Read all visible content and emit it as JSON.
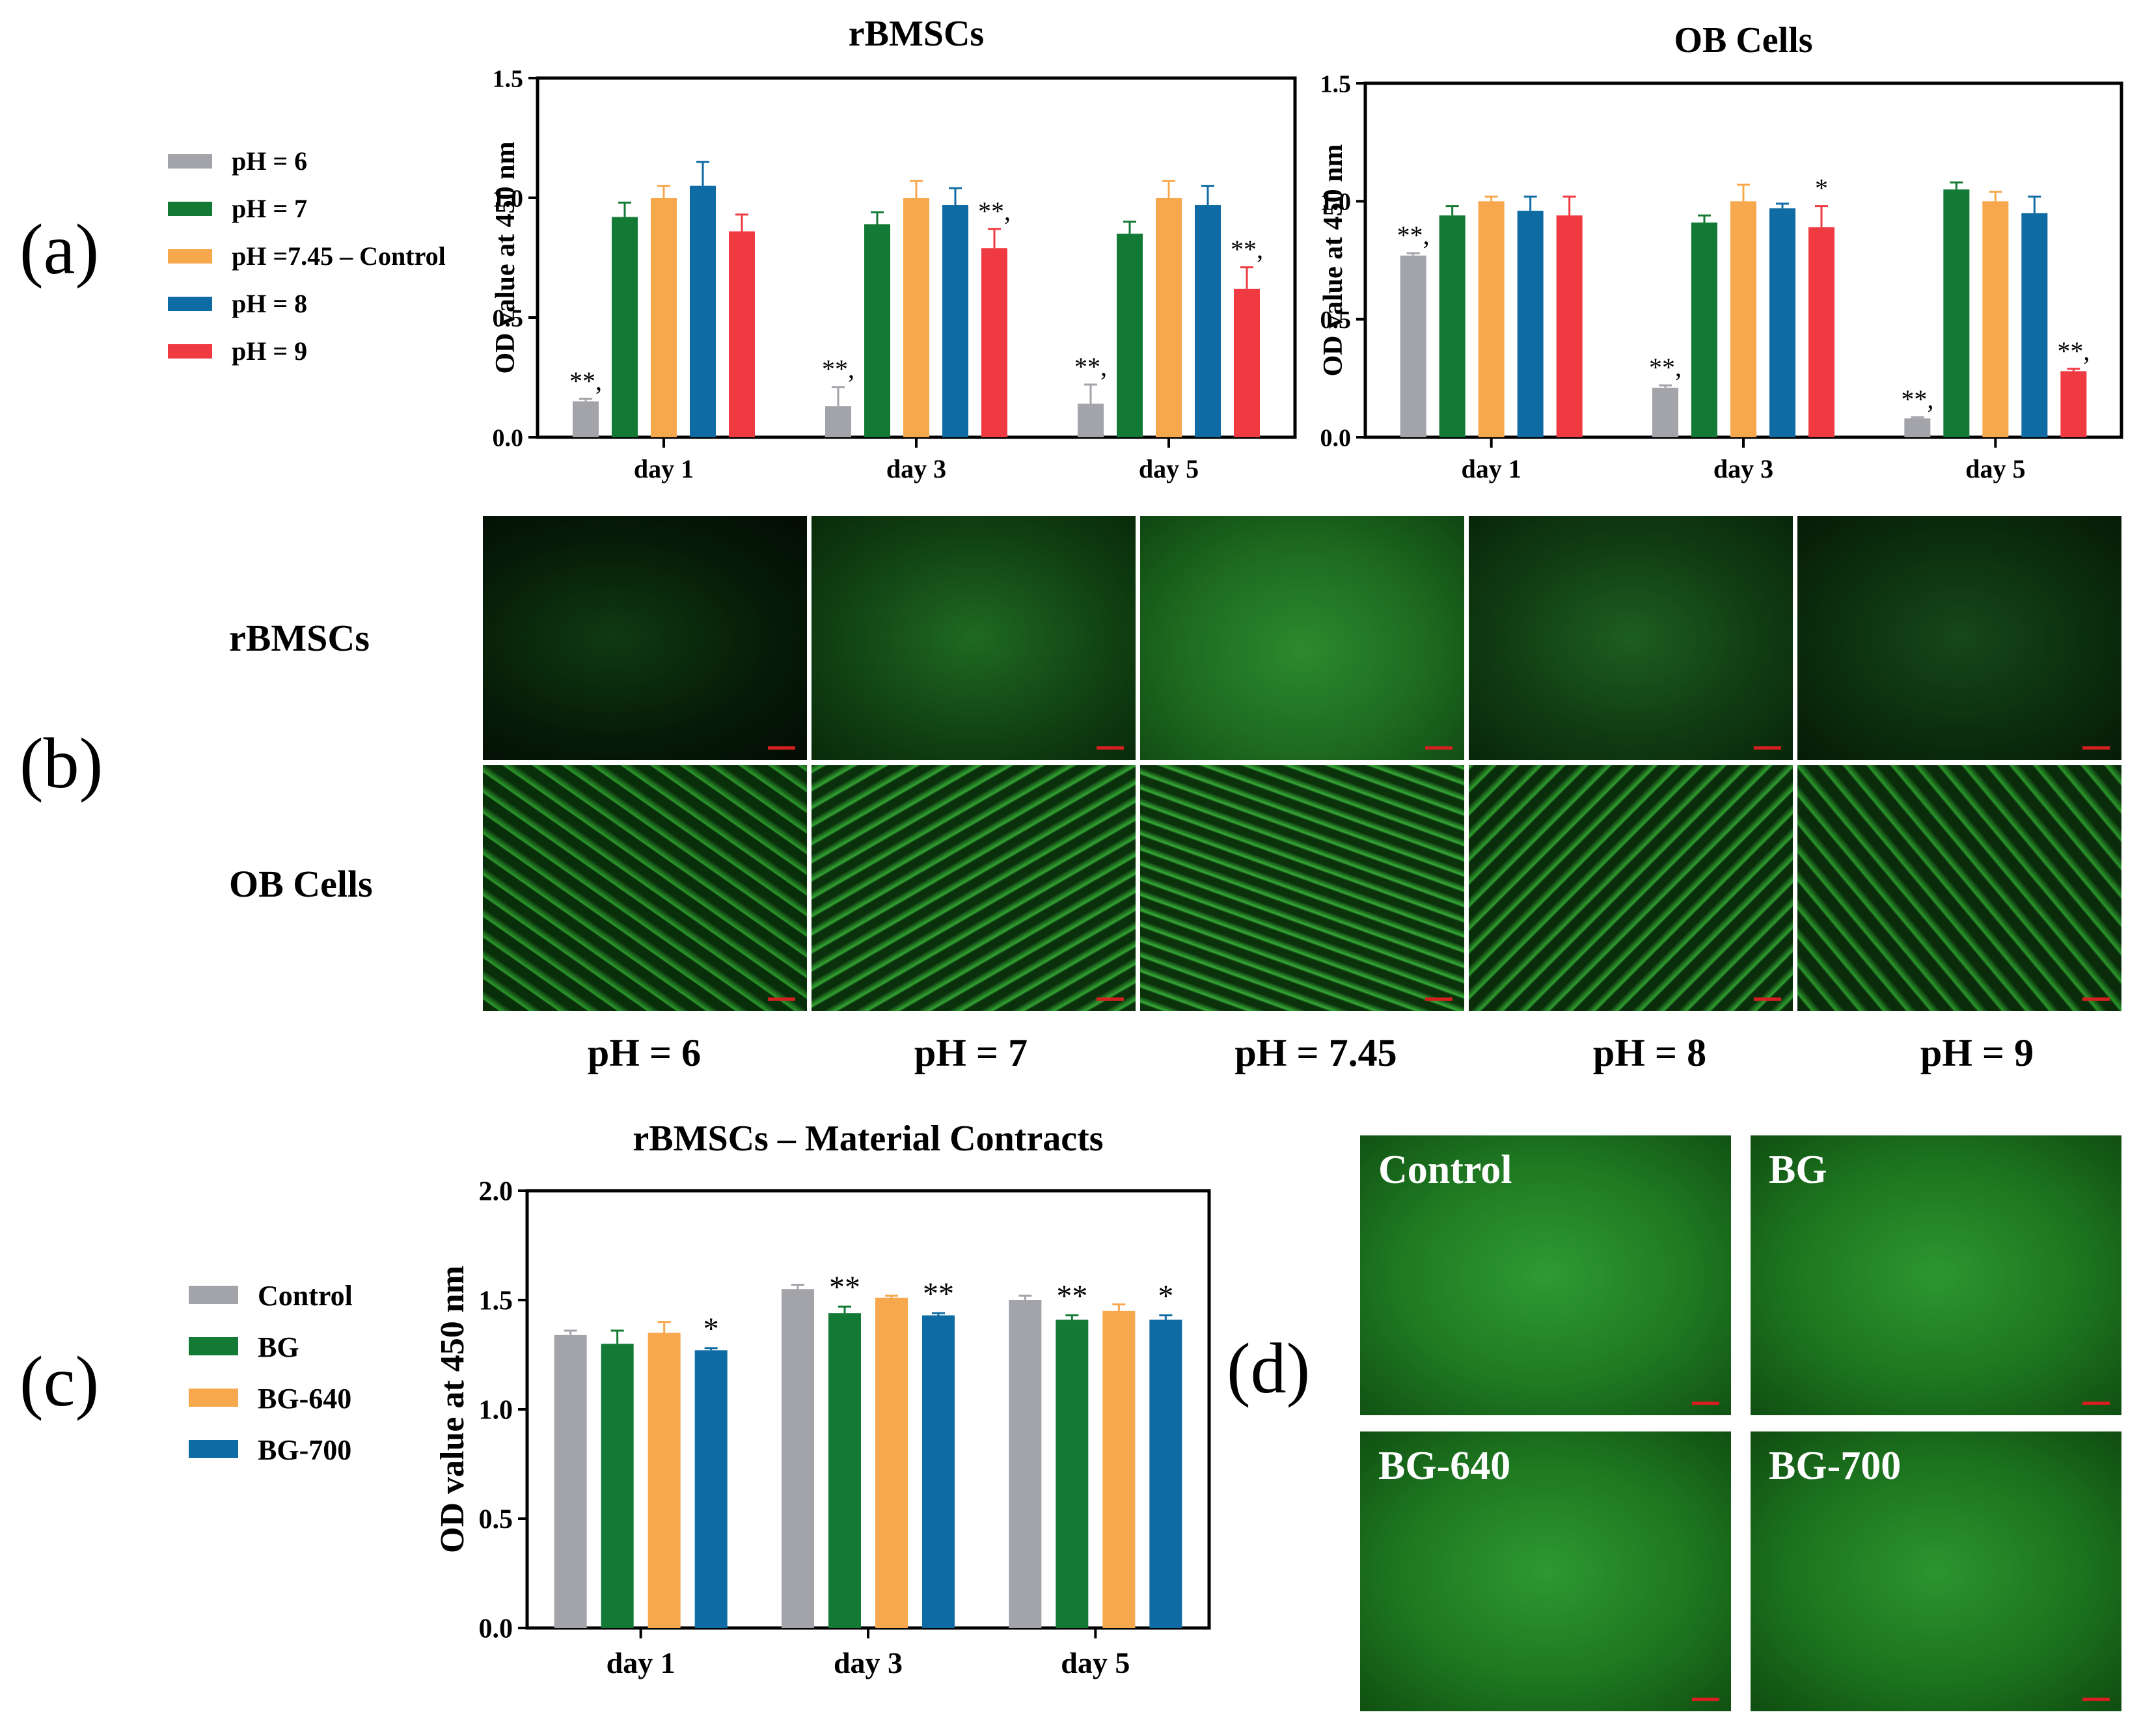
{
  "panel_labels": [
    "(a)",
    "(b)",
    "(c)",
    "(d)"
  ],
  "colors": {
    "pH = 6": "#a3a3aa",
    "pH = 7": "#137a35",
    "pH =7.45 – Control": "#f8a84c",
    "pH = 8": "#0e6ba4",
    "pH = 9": "#ef3a42",
    "Control": "#a3a3aa",
    "BG": "#137a35",
    "BG-640": "#f8a84c",
    "BG-700": "#0e6ba4"
  },
  "panel_a_legend": [
    "pH = 6",
    "pH = 7",
    "pH =7.45 – Control",
    "pH = 8",
    "pH = 9"
  ],
  "panel_c_legend": [
    "Control",
    "BG",
    "BG-640",
    "BG-700"
  ],
  "panel_b": {
    "row_labels": [
      "rBMSCs",
      "OB Cells"
    ],
    "column_labels": [
      "pH = 6",
      "pH = 7",
      "pH = 7.45",
      "pH = 8",
      "pH = 9"
    ]
  },
  "panel_d": {
    "labels": [
      "Control",
      "BG",
      "BG-640",
      "BG-700"
    ]
  },
  "chart_data": [
    {
      "type": "bar",
      "title": "rBMSCs",
      "ylabel": "OD value at 450 nm",
      "xlabel": "",
      "ylim": [
        0,
        1.5
      ],
      "yticks": [
        "0.0",
        "0.5",
        "1.0",
        "1.5"
      ],
      "categories": [
        "day 1",
        "day 3",
        "day 5"
      ],
      "grid": false,
      "series": [
        {
          "name": "pH = 6",
          "values": [
            0.15,
            0.13,
            0.14
          ],
          "errors": [
            0.01,
            0.08,
            0.08
          ],
          "annotations": [
            "**,",
            "**,",
            "**,"
          ]
        },
        {
          "name": "pH = 7",
          "values": [
            0.92,
            0.89,
            0.85
          ],
          "errors": [
            0.06,
            0.05,
            0.05
          ],
          "annotations": [
            "",
            "",
            ""
          ]
        },
        {
          "name": "pH =7.45 – Control",
          "values": [
            1.0,
            1.0,
            1.0
          ],
          "errors": [
            0.05,
            0.07,
            0.07
          ],
          "annotations": [
            "",
            "",
            ""
          ]
        },
        {
          "name": "pH = 8",
          "values": [
            1.05,
            0.97,
            0.97
          ],
          "errors": [
            0.1,
            0.07,
            0.08
          ],
          "annotations": [
            "",
            "",
            ""
          ]
        },
        {
          "name": "pH = 9",
          "values": [
            0.86,
            0.79,
            0.62
          ],
          "errors": [
            0.07,
            0.08,
            0.09
          ],
          "annotations": [
            "",
            "**,",
            "**,"
          ]
        }
      ]
    },
    {
      "type": "bar",
      "title": "OB Cells",
      "ylabel": "OD value at 450 nm",
      "xlabel": "",
      "ylim": [
        0,
        1.5
      ],
      "yticks": [
        "0.0",
        "0.5",
        "1.0",
        "1.5"
      ],
      "categories": [
        "day 1",
        "day 3",
        "day 5"
      ],
      "grid": false,
      "series": [
        {
          "name": "pH = 6",
          "values": [
            0.77,
            0.21,
            0.08
          ],
          "errors": [
            0.01,
            0.01,
            0.005
          ],
          "annotations": [
            "**,",
            "**,",
            "**,"
          ]
        },
        {
          "name": "pH = 7",
          "values": [
            0.94,
            0.91,
            1.05
          ],
          "errors": [
            0.04,
            0.03,
            0.03
          ],
          "annotations": [
            "",
            "",
            ""
          ]
        },
        {
          "name": "pH =7.45 – Control",
          "values": [
            1.0,
            1.0,
            1.0
          ],
          "errors": [
            0.02,
            0.07,
            0.04
          ],
          "annotations": [
            "",
            "",
            ""
          ]
        },
        {
          "name": "pH = 8",
          "values": [
            0.96,
            0.97,
            0.95
          ],
          "errors": [
            0.06,
            0.02,
            0.07
          ],
          "annotations": [
            "",
            "",
            ""
          ]
        },
        {
          "name": "pH = 9",
          "values": [
            0.94,
            0.89,
            0.28
          ],
          "errors": [
            0.08,
            0.09,
            0.01
          ],
          "annotations": [
            "",
            "*",
            "**,"
          ]
        }
      ]
    },
    {
      "type": "bar",
      "title": "rBMSCs – Material Contracts",
      "ylabel": "OD value at 450 nm",
      "xlabel": "",
      "ylim": [
        0,
        2.0
      ],
      "yticks": [
        "0.0",
        "0.5",
        "1.0",
        "1.5",
        "2.0"
      ],
      "categories": [
        "day 1",
        "day 3",
        "day 5"
      ],
      "grid": false,
      "series": [
        {
          "name": "Control",
          "values": [
            1.34,
            1.55,
            1.5
          ],
          "errors": [
            0.02,
            0.02,
            0.02
          ],
          "annotations": [
            "",
            "",
            ""
          ]
        },
        {
          "name": "BG",
          "values": [
            1.3,
            1.44,
            1.41
          ],
          "errors": [
            0.06,
            0.03,
            0.02
          ],
          "annotations": [
            "",
            "**",
            "**"
          ]
        },
        {
          "name": "BG-640",
          "values": [
            1.35,
            1.51,
            1.45
          ],
          "errors": [
            0.05,
            0.01,
            0.03
          ],
          "annotations": [
            "",
            "",
            ""
          ]
        },
        {
          "name": "BG-700",
          "values": [
            1.27,
            1.43,
            1.41
          ],
          "errors": [
            0.01,
            0.01,
            0.02
          ],
          "annotations": [
            "*",
            "**",
            "*"
          ]
        }
      ]
    }
  ]
}
